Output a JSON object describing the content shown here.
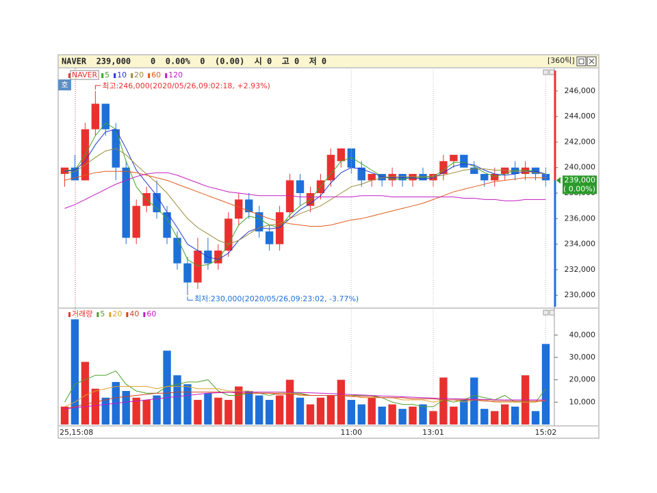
{
  "header": {
    "title": "NAVER  239,000    0  0.00%  0  (0.00)  시 0  고 0  저 0",
    "tick_unit": "[360틱]",
    "quote_button": "호"
  },
  "chart_data": [
    {
      "type": "candlestick",
      "name": "NAVER",
      "up_color": "#e8312f",
      "down_color": "#1f6fd8",
      "open": [
        239500,
        240000,
        239000,
        243000,
        245000,
        243000,
        240000,
        234500,
        237000,
        238000,
        236500,
        234500,
        232500,
        231000,
        233500,
        232500,
        233500,
        236000,
        237500,
        236500,
        235000,
        234000,
        236500,
        239000,
        237000,
        238000,
        239000,
        240500,
        241500,
        240000,
        239000,
        239500,
        239000,
        239500,
        239000,
        239500,
        239000,
        239500,
        240500,
        241000,
        240000,
        239500,
        239000,
        239500,
        240000,
        239500,
        240000,
        239500
      ],
      "high": [
        240000,
        241000,
        243500,
        246000,
        245000,
        243500,
        240500,
        237500,
        238500,
        239000,
        237000,
        235000,
        233000,
        234500,
        234500,
        234000,
        236500,
        238000,
        238000,
        237000,
        235500,
        237000,
        239500,
        239500,
        238500,
        239500,
        241500,
        241500,
        241500,
        240500,
        239500,
        239500,
        240000,
        239500,
        239500,
        240000,
        239500,
        241000,
        241000,
        241000,
        240500,
        239500,
        240000,
        240000,
        240500,
        240500,
        240000,
        240000
      ],
      "low": [
        238500,
        239000,
        239000,
        242500,
        242500,
        239000,
        234000,
        234000,
        236500,
        236000,
        234000,
        232000,
        230000,
        230500,
        232000,
        232000,
        233000,
        235500,
        236000,
        234500,
        233500,
        233500,
        236000,
        237000,
        236500,
        237500,
        238500,
        240000,
        239500,
        238500,
        238500,
        238500,
        238500,
        238500,
        238500,
        239000,
        238500,
        239000,
        240000,
        240000,
        239500,
        238500,
        238500,
        239000,
        239000,
        239000,
        239000,
        238500
      ],
      "close": [
        240000,
        239000,
        243000,
        245000,
        243000,
        240000,
        234500,
        237000,
        238000,
        236500,
        234500,
        232500,
        231000,
        233500,
        232500,
        233500,
        236000,
        237500,
        236500,
        235000,
        234000,
        236500,
        239000,
        238000,
        238000,
        239000,
        241000,
        241500,
        240000,
        239000,
        239500,
        239000,
        239500,
        239000,
        239500,
        239000,
        239500,
        240500,
        241000,
        240000,
        239500,
        239000,
        239500,
        240000,
        239500,
        240000,
        239500,
        239000
      ],
      "series": [
        {
          "name": "5",
          "color": "#3fa52a",
          "values": [
            239800,
            239800,
            241000,
            242500,
            243500,
            243000,
            240500,
            238500,
            237500,
            236800,
            236000,
            234500,
            232800,
            232300,
            232400,
            232800,
            234000,
            235500,
            236200,
            236000,
            235500,
            235300,
            236300,
            237000,
            237500,
            238500,
            239500,
            240500,
            240800,
            240300,
            239800,
            239300,
            239100,
            239100,
            239200,
            239200,
            239300,
            239800,
            240400,
            240400,
            240100,
            239600,
            239300,
            239500,
            239800,
            239800,
            239700,
            239500
          ]
        },
        {
          "name": "10",
          "color": "#2238d0",
          "values": [
            239700,
            239800,
            240500,
            241800,
            242800,
            243000,
            241500,
            239800,
            238800,
            237800,
            236500,
            235300,
            234000,
            233500,
            233000,
            232800,
            233300,
            234300,
            235000,
            235300,
            235200,
            235300,
            236000,
            236700,
            237200,
            237800,
            238800,
            239600,
            240000,
            239900,
            239600,
            239300,
            239200,
            239200,
            239200,
            239100,
            239200,
            239600,
            240100,
            240300,
            240200,
            239800,
            239500,
            239400,
            239500,
            239700,
            239700,
            239500
          ]
        },
        {
          "name": "20",
          "color": "#9c8a3a",
          "values": [
            239500,
            239700,
            240200,
            240800,
            241300,
            241500,
            241000,
            240200,
            239500,
            238800,
            238000,
            237000,
            236000,
            235300,
            234800,
            234300,
            234000,
            234300,
            234800,
            235300,
            235500,
            235600,
            236000,
            236400,
            236700,
            237000,
            237500,
            238000,
            238500,
            238700,
            239000,
            239200,
            239300,
            239300,
            239300,
            239300,
            239300,
            239400,
            239600,
            239800,
            239900,
            239900,
            239800,
            239800,
            239700,
            239700,
            239600,
            239500
          ]
        },
        {
          "name": "60",
          "color": "#e05a1c",
          "values": [
            239000,
            239200,
            239400,
            239600,
            239700,
            239700,
            239700,
            239600,
            239400,
            239200,
            239000,
            238700,
            238400,
            238100,
            237800,
            237500,
            237200,
            236900,
            236600,
            236300,
            236000,
            235800,
            235600,
            235500,
            235400,
            235400,
            235500,
            235700,
            235900,
            236000,
            236200,
            236400,
            236600,
            236800,
            237000,
            237200,
            237500,
            237800,
            238100,
            238300,
            238500,
            238700,
            238900,
            239000,
            239100,
            239200,
            239200,
            239200
          ]
        },
        {
          "name": "120",
          "color": "#c21ac2",
          "values": [
            236800,
            237100,
            237500,
            237900,
            238300,
            238700,
            239000,
            239300,
            239500,
            239600,
            239600,
            239400,
            239100,
            238800,
            238500,
            238300,
            238100,
            238000,
            237900,
            237800,
            237800,
            237800,
            237800,
            237700,
            237700,
            237700,
            237700,
            237700,
            237700,
            237800,
            237800,
            237800,
            237700,
            237700,
            237700,
            237700,
            237700,
            237700,
            237700,
            237600,
            237600,
            237500,
            237500,
            237400,
            237400,
            237500,
            237500,
            237500
          ]
        }
      ],
      "ylim": [
        229100,
        247600
      ],
      "yticks": [
        {
          "value": 230000,
          "label": "230,000"
        },
        {
          "value": 232000,
          "label": "232,000"
        },
        {
          "value": 234000,
          "label": "234,000"
        },
        {
          "value": 236000,
          "label": "236,000"
        },
        {
          "value": 238000,
          "label": "238,000"
        },
        {
          "value": 240000,
          "label": "240,000"
        },
        {
          "value": 242000,
          "label": "242,000"
        },
        {
          "value": 244000,
          "label": "244,000"
        },
        {
          "value": 246000,
          "label": "246,000"
        }
      ],
      "annotations": [
        "최고:246,000(2020/05/26,09:02:18, +2.93%)",
        "최저:230,000(2020/05/26,09:23:02, -3.77%)"
      ],
      "current_price": {
        "value": 239000,
        "label": "239,000"
      },
      "current_change_label": "( 0.00%)"
    },
    {
      "type": "bar",
      "name": "거래량",
      "categories": [
        "25,15:08",
        null,
        null,
        null,
        null,
        null,
        null,
        null,
        null,
        null,
        null,
        null,
        null,
        null,
        null,
        null,
        null,
        null,
        null,
        null,
        null,
        null,
        null,
        null,
        null,
        null,
        null,
        null,
        "11:00",
        null,
        null,
        null,
        null,
        null,
        null,
        null,
        "13:01",
        null,
        null,
        null,
        null,
        null,
        null,
        null,
        null,
        null,
        null,
        "15:02"
      ],
      "values": [
        8000,
        47000,
        28000,
        16000,
        12000,
        19000,
        15000,
        12000,
        11000,
        13000,
        33000,
        22000,
        18000,
        11000,
        14000,
        12000,
        11000,
        17000,
        15000,
        13000,
        11000,
        13000,
        20000,
        12000,
        9000,
        12000,
        13000,
        20000,
        11000,
        9000,
        12000,
        8000,
        9000,
        7000,
        8000,
        9000,
        6000,
        21000,
        8000,
        11000,
        21000,
        7000,
        6000,
        9000,
        8000,
        22000,
        6000,
        36000
      ],
      "series": [
        {
          "name": "5",
          "color": "#4fa028",
          "values": [
            10000,
            18000,
            20000,
            22000,
            22000,
            24000,
            18000,
            15000,
            14000,
            14000,
            17000,
            18000,
            19000,
            19000,
            20000,
            15000,
            13000,
            13000,
            14000,
            14000,
            13000,
            14000,
            14000,
            14000,
            13000,
            13000,
            13000,
            13000,
            13000,
            13000,
            13000,
            12000,
            10000,
            9000,
            9000,
            8000,
            8000,
            11000,
            10000,
            11000,
            13000,
            12000,
            11000,
            13000,
            10000,
            10000,
            10000,
            16000
          ]
        },
        {
          "name": "20",
          "color": "#e0a028",
          "values": [
            8000,
            10000,
            13000,
            15000,
            16000,
            17000,
            17000,
            17000,
            17000,
            16000,
            17000,
            17000,
            17000,
            16000,
            16000,
            16000,
            15000,
            15000,
            15000,
            14000,
            14000,
            14000,
            14000,
            13000,
            13000,
            13000,
            13000,
            13000,
            13000,
            12000,
            12000,
            12000,
            12000,
            11000,
            11000,
            11000,
            10000,
            11000,
            11000,
            10000,
            11000,
            11000,
            10000,
            10000,
            10000,
            10000,
            10000,
            11000
          ]
        },
        {
          "name": "40",
          "color": "#d04020",
          "values": [
            7000,
            8000,
            9000,
            10000,
            11000,
            12000,
            12500,
            13000,
            13500,
            14000,
            14000,
            14500,
            14500,
            14500,
            14500,
            14500,
            14500,
            14000,
            14000,
            14000,
            14000,
            13500,
            13500,
            13500,
            13000,
            13000,
            13000,
            13000,
            12500,
            12500,
            12500,
            12000,
            12000,
            12000,
            11500,
            11500,
            11500,
            11000,
            11000,
            11000,
            11000,
            10500,
            10500,
            10500,
            10500,
            10500,
            10500,
            10500
          ]
        },
        {
          "name": "60",
          "color": "#c21ac2",
          "values": [
            7000,
            7500,
            8000,
            8500,
            9000,
            9500,
            10000,
            10500,
            11000,
            11500,
            12000,
            12500,
            13000,
            13500,
            14000,
            14200,
            14400,
            14500,
            14500,
            14500,
            14500,
            14500,
            14400,
            14300,
            14200,
            14000,
            13800,
            13600,
            13400,
            13200,
            13000,
            12800,
            12600,
            12400,
            12200,
            12000,
            11800,
            11600,
            11500,
            11400,
            11300,
            11200,
            11100,
            11000,
            11000,
            11000,
            11000,
            11000
          ]
        }
      ],
      "ylim": [
        0,
        51400
      ],
      "yticks": [
        {
          "value": 10000,
          "label": "10,000"
        },
        {
          "value": 20000,
          "label": "20,000"
        },
        {
          "value": 30000,
          "label": "30,000"
        },
        {
          "value": 40000,
          "label": "40,000"
        }
      ]
    }
  ]
}
